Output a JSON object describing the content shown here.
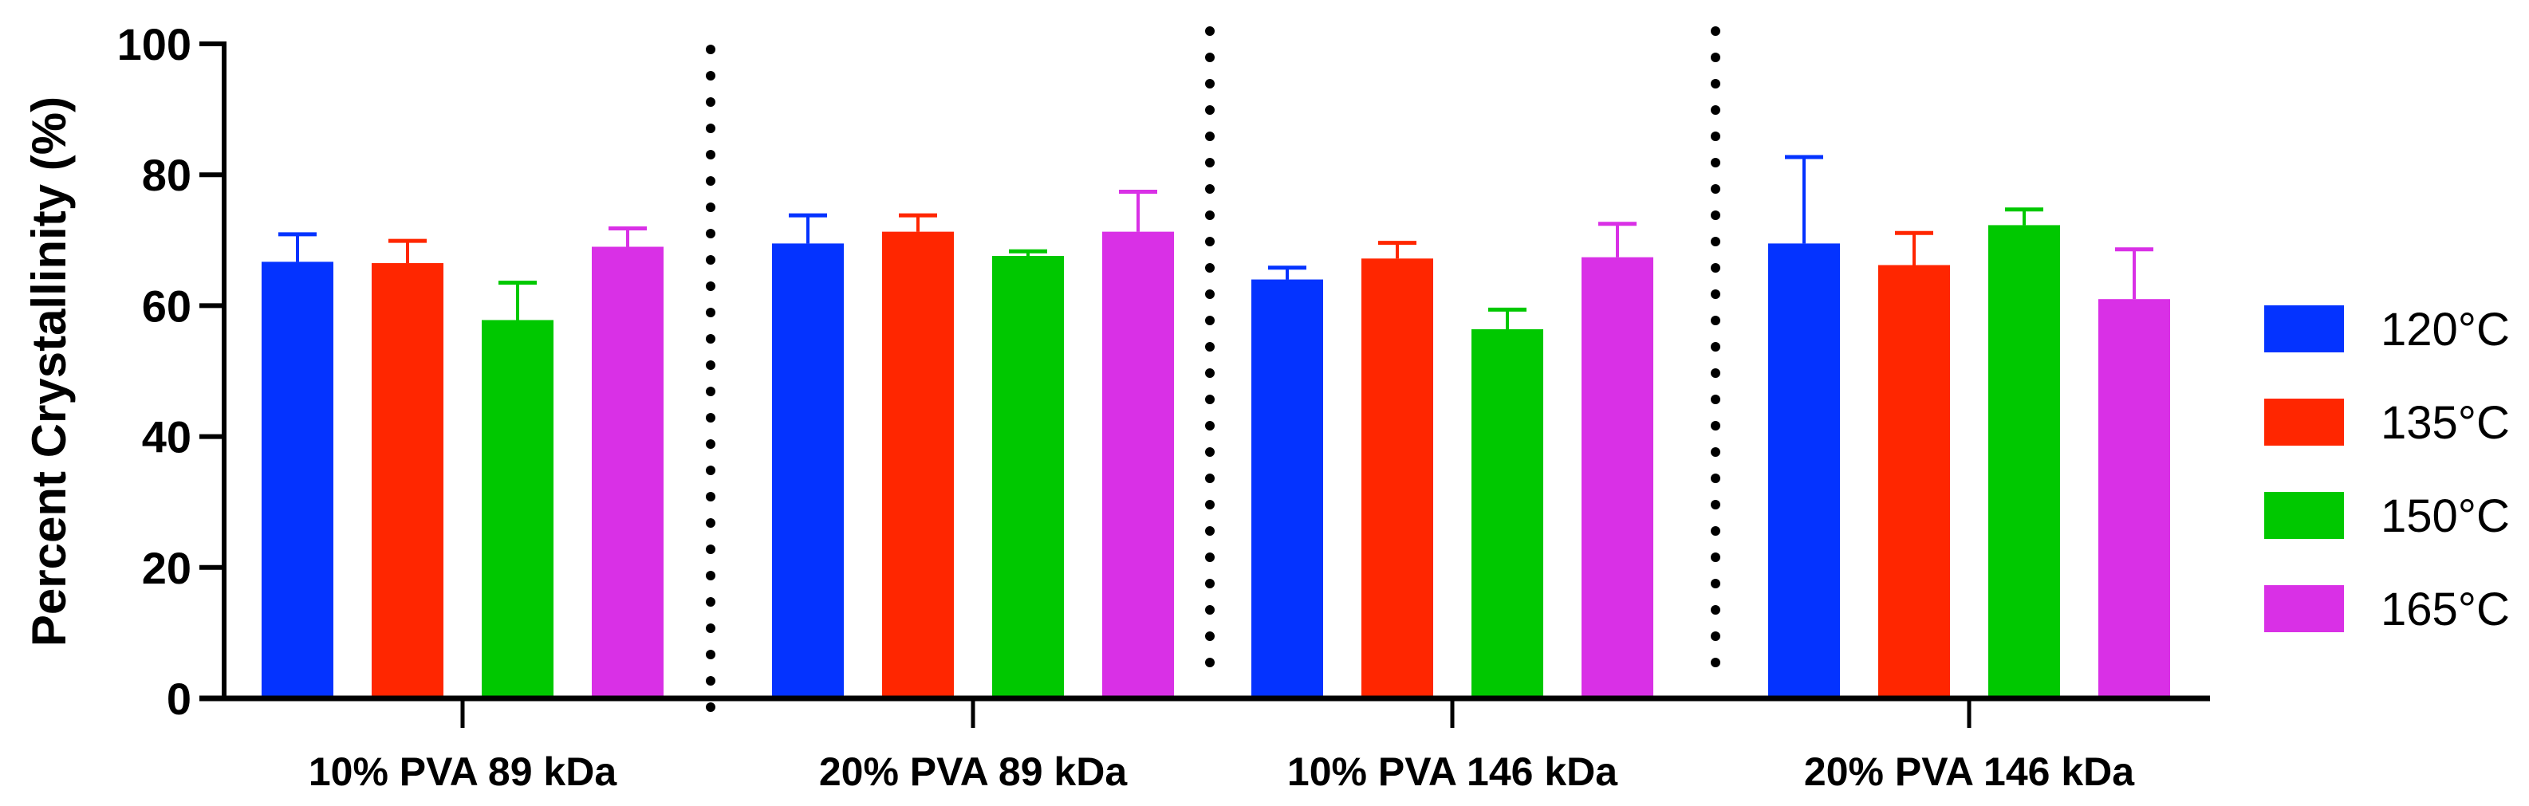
{
  "chart_data": {
    "type": "bar",
    "title": "",
    "xlabel": "",
    "ylabel": "Percent Crystallinity (%)",
    "ylim": [
      0,
      100
    ],
    "yticks": [
      "0",
      "20",
      "40",
      "60",
      "80",
      "100"
    ],
    "grid": false,
    "legend_position": "right",
    "categories": [
      "10% PVA 89 kDa",
      "20% PVA 89 kDa",
      "10% PVA 146 kDa",
      "20% PVA 146 kDa"
    ],
    "series": [
      {
        "name": "120°C",
        "color": "#0433FF",
        "values": [
          66.7,
          69.5,
          64.0,
          69.5
        ],
        "errors": [
          4.2,
          4.3,
          1.8,
          13.2
        ]
      },
      {
        "name": "135°C",
        "color": "#FF2600",
        "values": [
          66.5,
          71.3,
          67.2,
          66.2
        ],
        "errors": [
          3.4,
          2.5,
          2.4,
          4.9
        ]
      },
      {
        "name": "150°C",
        "color": "#00C800",
        "values": [
          57.8,
          67.6,
          56.4,
          72.3
        ],
        "errors": [
          5.7,
          0.7,
          3.0,
          2.4
        ]
      },
      {
        "name": "165°C",
        "color": "#D930E6",
        "values": [
          69.0,
          71.3,
          67.4,
          61.0
        ],
        "errors": [
          2.8,
          6.1,
          5.1,
          7.6
        ]
      }
    ]
  }
}
